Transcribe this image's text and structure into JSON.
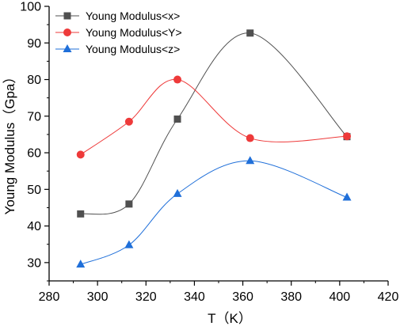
{
  "chart_data": {
    "type": "line",
    "title": "",
    "xlabel": "T（K）",
    "ylabel": "Young Modulus（Gpa）",
    "xlim": [
      280,
      420
    ],
    "ylim": [
      25,
      100
    ],
    "xticks": [
      280,
      300,
      320,
      340,
      360,
      380,
      400,
      420
    ],
    "yticks": [
      30,
      40,
      50,
      60,
      70,
      80,
      90,
      100
    ],
    "grid": false,
    "legend_position": "top-left",
    "x": [
      293,
      313,
      333,
      363,
      403
    ],
    "series": [
      {
        "name": "Young Modulus<x>",
        "values": [
          43.3,
          46.0,
          69.2,
          92.7,
          64.4
        ],
        "color": "#505050",
        "marker": "square"
      },
      {
        "name": "Young Modulus<Y>",
        "values": [
          59.5,
          68.5,
          80.0,
          64.0,
          64.5
        ],
        "color": "#ee3a3a",
        "marker": "circle"
      },
      {
        "name": "Young Modulus<z>",
        "values": [
          29.5,
          34.8,
          48.8,
          57.8,
          47.8
        ],
        "color": "#1f6fd9",
        "marker": "triangle"
      }
    ]
  }
}
